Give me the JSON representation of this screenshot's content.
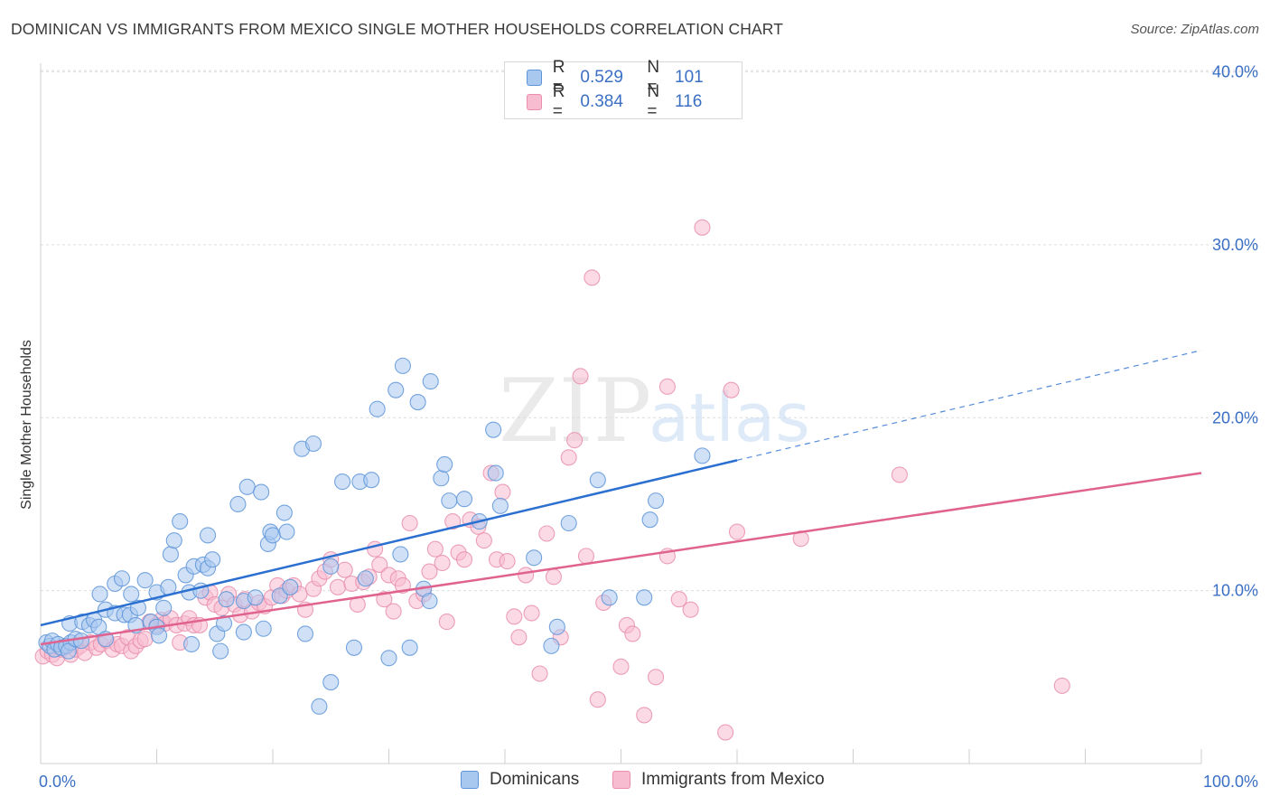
{
  "header": {
    "title": "DOMINICAN VS IMMIGRANTS FROM MEXICO SINGLE MOTHER HOUSEHOLDS CORRELATION CHART",
    "source": "Source: ZipAtlas.com"
  },
  "watermark": {
    "zip": "ZIP",
    "atlas": "atlas"
  },
  "legend_top": {
    "rows": [
      {
        "r_label": "R =",
        "r_value": "0.529",
        "n_label": "N =",
        "n_value": "101"
      },
      {
        "r_label": "R =",
        "r_value": "0.384",
        "n_label": "N =",
        "n_value": "116"
      }
    ]
  },
  "legend_bottom": {
    "items": [
      "Dominicans",
      "Immigrants from Mexico"
    ]
  },
  "colors": {
    "blue_fill": "#a9c8f0",
    "blue_stroke": "#5e95d8",
    "blue_line": "#2b6fd0",
    "pink_fill": "#f7bcd0",
    "pink_stroke": "#e98fad",
    "pink_line": "#e0638f",
    "axis_text": "#3a6fc4",
    "grid": "#dddddd"
  },
  "chart_data": {
    "type": "scatter",
    "title": "DOMINICAN VS IMMIGRANTS FROM MEXICO SINGLE MOTHER HOUSEHOLDS CORRELATION CHART",
    "xlabel": "",
    "ylabel": "Single Mother Households",
    "xlim": [
      0,
      100
    ],
    "ylim": [
      0,
      40.5
    ],
    "x_tick_labels": [
      "0.0%",
      "100.0%"
    ],
    "y_ticks": [
      10,
      20,
      30,
      40
    ],
    "y_tick_labels": [
      "10.0%",
      "20.0%",
      "30.0%",
      "40.0%"
    ],
    "grid": true,
    "legend_position": "top-center",
    "series": [
      {
        "name": "Dominicans",
        "R": 0.529,
        "N": 101,
        "trend": {
          "x0": 0,
          "y0": 8.0,
          "x1": 100,
          "y1": 23.9,
          "solid_until_x": 60
        },
        "points": [
          [
            0.5,
            7.0
          ],
          [
            0.8,
            6.8
          ],
          [
            1.0,
            7.1
          ],
          [
            1.2,
            6.6
          ],
          [
            1.5,
            6.9
          ],
          [
            1.8,
            6.7
          ],
          [
            2.2,
            6.8
          ],
          [
            2.6,
            7.0
          ],
          [
            2.4,
            6.5
          ],
          [
            3.0,
            7.2
          ],
          [
            3.5,
            7.1
          ],
          [
            2.5,
            8.1
          ],
          [
            3.6,
            8.2
          ],
          [
            4.2,
            8.0
          ],
          [
            4.6,
            8.3
          ],
          [
            5.0,
            7.9
          ],
          [
            5.6,
            7.2
          ],
          [
            5.1,
            9.8
          ],
          [
            5.6,
            8.9
          ],
          [
            6.4,
            8.7
          ],
          [
            6.4,
            10.4
          ],
          [
            7.0,
            10.7
          ],
          [
            7.2,
            8.6
          ],
          [
            7.7,
            8.6
          ],
          [
            7.8,
            9.8
          ],
          [
            8.2,
            8.0
          ],
          [
            8.4,
            9.0
          ],
          [
            9.0,
            10.6
          ],
          [
            9.5,
            8.2
          ],
          [
            10.0,
            7.9
          ],
          [
            10.0,
            9.9
          ],
          [
            10.2,
            7.4
          ],
          [
            10.6,
            9.0
          ],
          [
            11.0,
            10.2
          ],
          [
            11.2,
            12.1
          ],
          [
            11.5,
            12.9
          ],
          [
            12.0,
            14.0
          ],
          [
            12.5,
            10.9
          ],
          [
            12.8,
            9.9
          ],
          [
            13.0,
            6.9
          ],
          [
            13.2,
            11.4
          ],
          [
            13.8,
            10.0
          ],
          [
            14.0,
            11.5
          ],
          [
            14.4,
            11.3
          ],
          [
            14.4,
            13.2
          ],
          [
            14.8,
            11.8
          ],
          [
            15.2,
            7.5
          ],
          [
            15.5,
            6.5
          ],
          [
            15.8,
            8.1
          ],
          [
            16.0,
            9.5
          ],
          [
            17.0,
            15.0
          ],
          [
            17.5,
            9.4
          ],
          [
            17.5,
            7.6
          ],
          [
            17.8,
            16.0
          ],
          [
            18.5,
            9.6
          ],
          [
            19.0,
            15.7
          ],
          [
            19.2,
            7.8
          ],
          [
            19.6,
            12.7
          ],
          [
            19.8,
            13.4
          ],
          [
            20.0,
            13.2
          ],
          [
            20.6,
            9.7
          ],
          [
            21.0,
            14.5
          ],
          [
            21.2,
            13.4
          ],
          [
            21.5,
            10.2
          ],
          [
            22.5,
            18.2
          ],
          [
            22.8,
            7.5
          ],
          [
            23.5,
            18.5
          ],
          [
            24.0,
            3.3
          ],
          [
            25.0,
            4.7
          ],
          [
            25.0,
            11.4
          ],
          [
            26.0,
            16.3
          ],
          [
            27.0,
            6.7
          ],
          [
            27.5,
            16.3
          ],
          [
            28.0,
            10.7
          ],
          [
            28.5,
            16.4
          ],
          [
            29.0,
            20.5
          ],
          [
            30.0,
            6.1
          ],
          [
            30.6,
            21.6
          ],
          [
            31.0,
            12.1
          ],
          [
            31.2,
            23.0
          ],
          [
            31.8,
            6.7
          ],
          [
            32.5,
            20.9
          ],
          [
            33.0,
            10.1
          ],
          [
            33.5,
            9.4
          ],
          [
            33.6,
            22.1
          ],
          [
            34.5,
            16.5
          ],
          [
            34.8,
            17.3
          ],
          [
            35.2,
            15.2
          ],
          [
            36.5,
            15.3
          ],
          [
            37.8,
            14.0
          ],
          [
            39.0,
            19.3
          ],
          [
            39.2,
            16.8
          ],
          [
            39.6,
            14.9
          ],
          [
            42.5,
            11.9
          ],
          [
            44.0,
            6.8
          ],
          [
            44.5,
            7.9
          ],
          [
            45.5,
            13.9
          ],
          [
            48.0,
            16.4
          ],
          [
            49.0,
            9.6
          ],
          [
            52.0,
            9.6
          ],
          [
            52.5,
            14.1
          ],
          [
            53.0,
            15.2
          ],
          [
            57.0,
            17.8
          ]
        ]
      },
      {
        "name": "Immigrants from Mexico",
        "R": 0.384,
        "N": 116,
        "trend": {
          "x0": 0,
          "y0": 6.9,
          "x1": 100,
          "y1": 16.8,
          "solid_until_x": 100
        },
        "points": [
          [
            0.2,
            6.2
          ],
          [
            0.6,
            6.5
          ],
          [
            1.0,
            6.3
          ],
          [
            1.4,
            6.1
          ],
          [
            1.8,
            6.6
          ],
          [
            2.2,
            6.8
          ],
          [
            2.6,
            6.3
          ],
          [
            3.0,
            6.6
          ],
          [
            3.4,
            6.8
          ],
          [
            3.8,
            6.4
          ],
          [
            4.3,
            7.0
          ],
          [
            4.8,
            6.7
          ],
          [
            5.2,
            6.9
          ],
          [
            5.7,
            7.1
          ],
          [
            6.2,
            6.6
          ],
          [
            6.6,
            6.9
          ],
          [
            7.0,
            6.8
          ],
          [
            7.5,
            7.3
          ],
          [
            7.8,
            6.5
          ],
          [
            8.2,
            6.8
          ],
          [
            8.6,
            7.1
          ],
          [
            9.0,
            7.2
          ],
          [
            9.4,
            8.2
          ],
          [
            10.0,
            8.0
          ],
          [
            10.4,
            8.3
          ],
          [
            10.7,
            8.1
          ],
          [
            11.2,
            8.4
          ],
          [
            11.7,
            8.0
          ],
          [
            12.0,
            7.0
          ],
          [
            12.4,
            8.1
          ],
          [
            12.8,
            8.4
          ],
          [
            13.2,
            8.0
          ],
          [
            13.7,
            8.0
          ],
          [
            14.2,
            9.6
          ],
          [
            14.6,
            9.9
          ],
          [
            15.0,
            9.2
          ],
          [
            15.6,
            9.0
          ],
          [
            16.2,
            9.8
          ],
          [
            16.7,
            9.2
          ],
          [
            17.2,
            8.6
          ],
          [
            17.6,
            9.5
          ],
          [
            18.2,
            8.8
          ],
          [
            18.8,
            9.3
          ],
          [
            19.3,
            9.1
          ],
          [
            19.9,
            9.6
          ],
          [
            20.4,
            10.3
          ],
          [
            20.8,
            9.7
          ],
          [
            21.2,
            10.0
          ],
          [
            21.8,
            10.3
          ],
          [
            22.3,
            9.8
          ],
          [
            22.8,
            8.9
          ],
          [
            23.5,
            10.1
          ],
          [
            24.0,
            10.7
          ],
          [
            24.5,
            11.1
          ],
          [
            25.0,
            11.8
          ],
          [
            25.6,
            10.2
          ],
          [
            26.2,
            11.2
          ],
          [
            26.8,
            10.4
          ],
          [
            27.3,
            9.2
          ],
          [
            27.8,
            10.5
          ],
          [
            28.3,
            10.8
          ],
          [
            28.8,
            12.4
          ],
          [
            29.2,
            11.5
          ],
          [
            29.6,
            9.5
          ],
          [
            30.0,
            10.9
          ],
          [
            30.4,
            8.8
          ],
          [
            30.8,
            10.7
          ],
          [
            31.2,
            10.3
          ],
          [
            31.8,
            13.9
          ],
          [
            32.4,
            9.4
          ],
          [
            33.0,
            9.8
          ],
          [
            33.5,
            11.1
          ],
          [
            34.0,
            12.4
          ],
          [
            34.6,
            11.6
          ],
          [
            35.0,
            8.2
          ],
          [
            35.5,
            14.0
          ],
          [
            36.0,
            12.2
          ],
          [
            36.5,
            11.8
          ],
          [
            37.0,
            14.1
          ],
          [
            37.7,
            13.7
          ],
          [
            38.2,
            12.9
          ],
          [
            38.8,
            16.8
          ],
          [
            39.3,
            11.8
          ],
          [
            39.8,
            15.7
          ],
          [
            40.2,
            11.7
          ],
          [
            40.8,
            8.5
          ],
          [
            41.2,
            7.3
          ],
          [
            41.8,
            10.9
          ],
          [
            42.3,
            8.7
          ],
          [
            43.0,
            5.2
          ],
          [
            43.6,
            13.3
          ],
          [
            44.2,
            10.8
          ],
          [
            44.8,
            7.3
          ],
          [
            45.5,
            17.7
          ],
          [
            46.0,
            18.7
          ],
          [
            46.5,
            22.4
          ],
          [
            47.0,
            12.0
          ],
          [
            47.5,
            28.1
          ],
          [
            48.0,
            3.7
          ],
          [
            48.5,
            9.3
          ],
          [
            50.0,
            5.6
          ],
          [
            50.5,
            8.0
          ],
          [
            51.0,
            7.5
          ],
          [
            52.0,
            2.8
          ],
          [
            53.0,
            5.0
          ],
          [
            54.0,
            21.8
          ],
          [
            55.0,
            9.5
          ],
          [
            56.0,
            8.9
          ],
          [
            57.0,
            31.0
          ],
          [
            59.0,
            1.8
          ],
          [
            59.5,
            21.6
          ],
          [
            60.0,
            13.4
          ],
          [
            65.5,
            13.0
          ],
          [
            74.0,
            16.7
          ],
          [
            88.0,
            4.5
          ],
          [
            54.0,
            12.0
          ]
        ]
      }
    ]
  }
}
